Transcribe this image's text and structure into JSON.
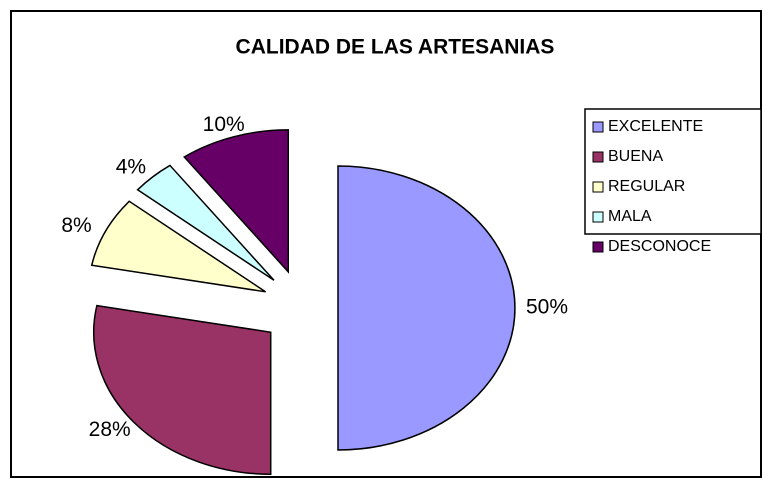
{
  "chart_data": {
    "type": "pie",
    "title": "CALIDAD DE LAS ARTESANIAS",
    "categories": [
      "EXCELENTE",
      "BUENA",
      "REGULAR",
      "MALA",
      "DESCONOCE"
    ],
    "values": [
      50,
      28,
      8,
      4,
      10
    ],
    "value_labels": [
      "50%",
      "28%",
      "8%",
      "4%",
      "10%"
    ],
    "colors": [
      "#9999ff",
      "#993366",
      "#ffffcc",
      "#ccffff",
      "#660066"
    ],
    "exploded": true,
    "legend": "right"
  }
}
